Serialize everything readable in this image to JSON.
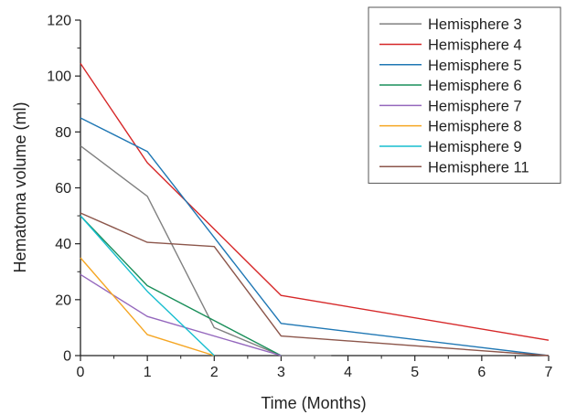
{
  "chart_data": {
    "type": "line",
    "title": "",
    "xlabel": "Time (Months)",
    "ylabel": "Hematoma volume (ml)",
    "xlim": [
      0,
      7
    ],
    "ylim": [
      0,
      120
    ],
    "x_ticks": [
      0,
      1,
      2,
      3,
      4,
      5,
      6,
      7
    ],
    "y_ticks": [
      0,
      20,
      40,
      60,
      80,
      100,
      120
    ],
    "grid": false,
    "legend_position": "top-right",
    "series": [
      {
        "name": "Hemisphere 3",
        "color": "#808080",
        "x": [
          0,
          1,
          2,
          3,
          3.75
        ],
        "y": [
          75,
          57,
          10,
          0,
          0
        ]
      },
      {
        "name": "Hemisphere 4",
        "color": "#d62728",
        "x": [
          0,
          1,
          3,
          7
        ],
        "y": [
          104.5,
          69,
          21.5,
          5.5
        ]
      },
      {
        "name": "Hemisphere 5",
        "color": "#1f77b4",
        "x": [
          0,
          1,
          3,
          7
        ],
        "y": [
          85,
          73,
          11.5,
          0
        ]
      },
      {
        "name": "Hemisphere 6",
        "color": "#1a8f5a",
        "x": [
          0,
          1,
          3
        ],
        "y": [
          50,
          25,
          0
        ]
      },
      {
        "name": "Hemisphere 7",
        "color": "#9467bd",
        "x": [
          0,
          1,
          3
        ],
        "y": [
          29,
          14,
          0
        ]
      },
      {
        "name": "Hemisphere 8",
        "color": "#f5a623",
        "x": [
          0,
          1,
          2
        ],
        "y": [
          35,
          7.5,
          0
        ]
      },
      {
        "name": "Hemisphere 9",
        "color": "#17becf",
        "x": [
          0,
          1,
          2
        ],
        "y": [
          50,
          23,
          0
        ]
      },
      {
        "name": "Hemisphere 11",
        "color": "#8c564b",
        "x": [
          0,
          1,
          2,
          3,
          7
        ],
        "y": [
          51,
          40.5,
          39,
          7,
          0
        ]
      }
    ]
  }
}
